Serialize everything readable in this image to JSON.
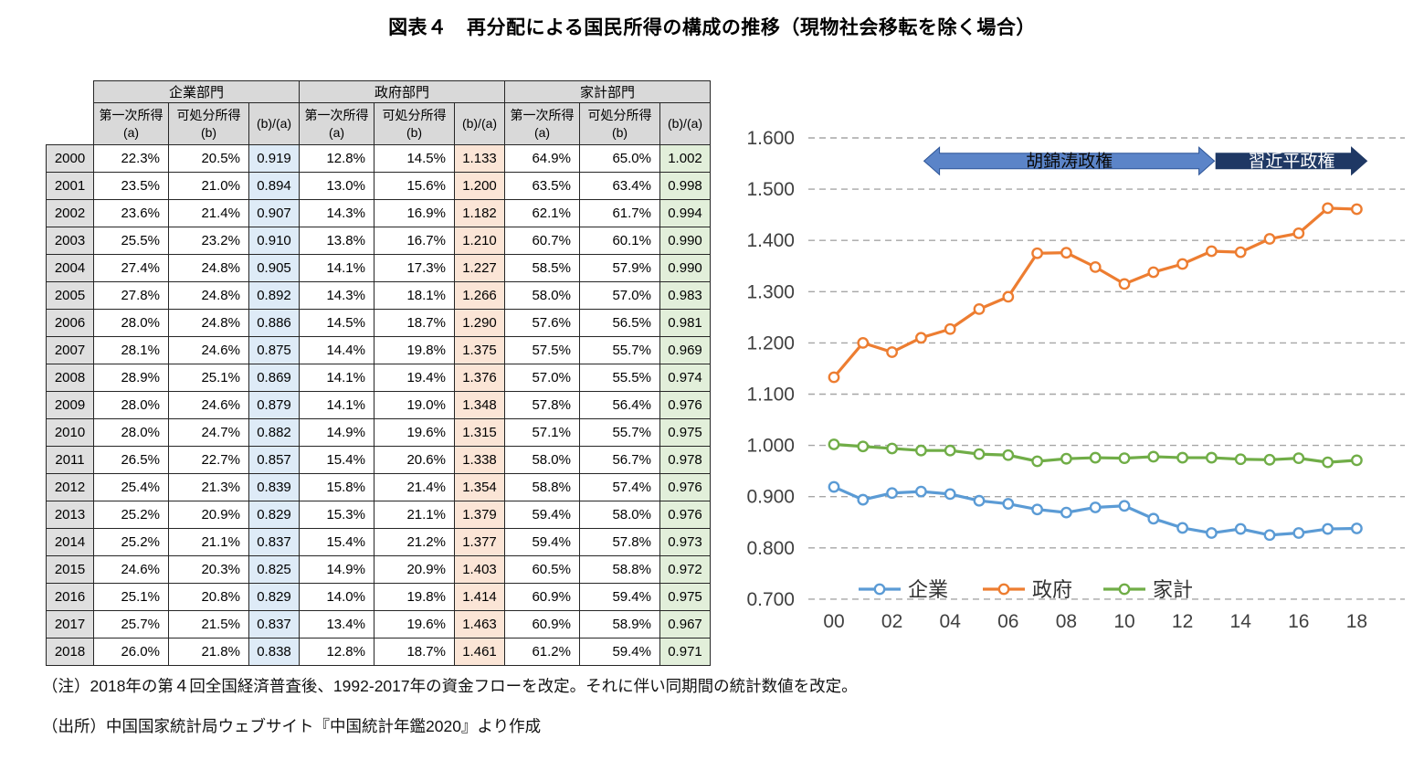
{
  "title": "図表４　再分配による国民所得の構成の推移（現物社会移転を除く場合）",
  "table": {
    "groups": [
      {
        "label": "企業部門",
        "tint": "#deebf7"
      },
      {
        "label": "政府部門",
        "tint": "#fbe5d6"
      },
      {
        "label": "家計部門",
        "tint": "#e2efda"
      }
    ],
    "sub_headers": [
      {
        "lines": [
          "第一次所得",
          "(a)"
        ]
      },
      {
        "lines": [
          "可処分所得",
          "(b)"
        ]
      },
      {
        "lines": [
          "(b)/(a)"
        ]
      }
    ],
    "rows": [
      {
        "year": "2000",
        "cells": [
          "22.3%",
          "20.5%",
          "0.919",
          "12.8%",
          "14.5%",
          "1.133",
          "64.9%",
          "65.0%",
          "1.002"
        ]
      },
      {
        "year": "2001",
        "cells": [
          "23.5%",
          "21.0%",
          "0.894",
          "13.0%",
          "15.6%",
          "1.200",
          "63.5%",
          "63.4%",
          "0.998"
        ]
      },
      {
        "year": "2002",
        "cells": [
          "23.6%",
          "21.4%",
          "0.907",
          "14.3%",
          "16.9%",
          "1.182",
          "62.1%",
          "61.7%",
          "0.994"
        ]
      },
      {
        "year": "2003",
        "cells": [
          "25.5%",
          "23.2%",
          "0.910",
          "13.8%",
          "16.7%",
          "1.210",
          "60.7%",
          "60.1%",
          "0.990"
        ]
      },
      {
        "year": "2004",
        "cells": [
          "27.4%",
          "24.8%",
          "0.905",
          "14.1%",
          "17.3%",
          "1.227",
          "58.5%",
          "57.9%",
          "0.990"
        ]
      },
      {
        "year": "2005",
        "cells": [
          "27.8%",
          "24.8%",
          "0.892",
          "14.3%",
          "18.1%",
          "1.266",
          "58.0%",
          "57.0%",
          "0.983"
        ]
      },
      {
        "year": "2006",
        "cells": [
          "28.0%",
          "24.8%",
          "0.886",
          "14.5%",
          "18.7%",
          "1.290",
          "57.6%",
          "56.5%",
          "0.981"
        ]
      },
      {
        "year": "2007",
        "cells": [
          "28.1%",
          "24.6%",
          "0.875",
          "14.4%",
          "19.8%",
          "1.375",
          "57.5%",
          "55.7%",
          "0.969"
        ]
      },
      {
        "year": "2008",
        "cells": [
          "28.9%",
          "25.1%",
          "0.869",
          "14.1%",
          "19.4%",
          "1.376",
          "57.0%",
          "55.5%",
          "0.974"
        ]
      },
      {
        "year": "2009",
        "cells": [
          "28.0%",
          "24.6%",
          "0.879",
          "14.1%",
          "19.0%",
          "1.348",
          "57.8%",
          "56.4%",
          "0.976"
        ]
      },
      {
        "year": "2010",
        "cells": [
          "28.0%",
          "24.7%",
          "0.882",
          "14.9%",
          "19.6%",
          "1.315",
          "57.1%",
          "55.7%",
          "0.975"
        ]
      },
      {
        "year": "2011",
        "cells": [
          "26.5%",
          "22.7%",
          "0.857",
          "15.4%",
          "20.6%",
          "1.338",
          "58.0%",
          "56.7%",
          "0.978"
        ]
      },
      {
        "year": "2012",
        "cells": [
          "25.4%",
          "21.3%",
          "0.839",
          "15.8%",
          "21.4%",
          "1.354",
          "58.8%",
          "57.4%",
          "0.976"
        ]
      },
      {
        "year": "2013",
        "cells": [
          "25.2%",
          "20.9%",
          "0.829",
          "15.3%",
          "21.1%",
          "1.379",
          "59.4%",
          "58.0%",
          "0.976"
        ]
      },
      {
        "year": "2014",
        "cells": [
          "25.2%",
          "21.1%",
          "0.837",
          "15.4%",
          "21.2%",
          "1.377",
          "59.4%",
          "57.8%",
          "0.973"
        ]
      },
      {
        "year": "2015",
        "cells": [
          "24.6%",
          "20.3%",
          "0.825",
          "14.9%",
          "20.9%",
          "1.403",
          "60.5%",
          "58.8%",
          "0.972"
        ]
      },
      {
        "year": "2016",
        "cells": [
          "25.1%",
          "20.8%",
          "0.829",
          "14.0%",
          "19.8%",
          "1.414",
          "60.9%",
          "59.4%",
          "0.975"
        ]
      },
      {
        "year": "2017",
        "cells": [
          "25.7%",
          "21.5%",
          "0.837",
          "13.4%",
          "19.6%",
          "1.463",
          "60.9%",
          "58.9%",
          "0.967"
        ]
      },
      {
        "year": "2018",
        "cells": [
          "26.0%",
          "21.8%",
          "0.838",
          "12.8%",
          "18.7%",
          "1.461",
          "61.2%",
          "59.4%",
          "0.971"
        ]
      }
    ]
  },
  "chart_data": {
    "type": "line",
    "title": "",
    "x_years": [
      "2000",
      "2001",
      "2002",
      "2003",
      "2004",
      "2005",
      "2006",
      "2007",
      "2008",
      "2009",
      "2010",
      "2011",
      "2012",
      "2013",
      "2014",
      "2015",
      "2016",
      "2017",
      "2018"
    ],
    "x_tick_labels": [
      "00",
      "02",
      "04",
      "06",
      "08",
      "10",
      "12",
      "14",
      "16",
      "18"
    ],
    "ylim": [
      0.7,
      1.6
    ],
    "y_ticks": [
      "1.600",
      "1.500",
      "1.400",
      "1.300",
      "1.200",
      "1.100",
      "1.000",
      "0.900",
      "0.800",
      "0.700"
    ],
    "grid": "horizontal-dashed",
    "legend_position": "bottom-inside",
    "series": [
      {
        "name": "企業",
        "color": "#5b9bd5",
        "values": [
          0.919,
          0.894,
          0.907,
          0.91,
          0.905,
          0.892,
          0.886,
          0.875,
          0.869,
          0.879,
          0.882,
          0.857,
          0.839,
          0.829,
          0.837,
          0.825,
          0.829,
          0.837,
          0.838
        ]
      },
      {
        "name": "政府",
        "color": "#ed7d31",
        "values": [
          1.133,
          1.2,
          1.182,
          1.21,
          1.227,
          1.266,
          1.29,
          1.375,
          1.376,
          1.348,
          1.315,
          1.338,
          1.354,
          1.379,
          1.377,
          1.403,
          1.414,
          1.463,
          1.461
        ]
      },
      {
        "name": "家計",
        "color": "#70ad47",
        "values": [
          1.002,
          0.998,
          0.994,
          0.99,
          0.99,
          0.983,
          0.981,
          0.969,
          0.974,
          0.976,
          0.975,
          0.978,
          0.976,
          0.976,
          0.973,
          0.972,
          0.975,
          0.967,
          0.971
        ]
      }
    ],
    "annotations": [
      {
        "label": "胡錦涛政権",
        "type": "double-arrow",
        "from_index": 3.1,
        "to_index": 13.1,
        "at_value": 1.555,
        "fill": "#5b84c8",
        "stroke": "#2e5597",
        "text_color": "#0a0a0a"
      },
      {
        "label": "習近平政権",
        "type": "right-arrow",
        "from_index": 13.15,
        "to_index": 18.35,
        "at_value": 1.555,
        "fill": "#1f3864",
        "stroke": "#1f3864",
        "text_color": "#ffffff"
      }
    ]
  },
  "notes": {
    "note": "（注）2018年の第４回全国経済普査後、1992-2017年の資金フローを改定。それに伴い同期間の統計数値を改定。",
    "source": "（出所）中国国家統計局ウェブサイト『中国統計年鑑2020』より作成"
  }
}
